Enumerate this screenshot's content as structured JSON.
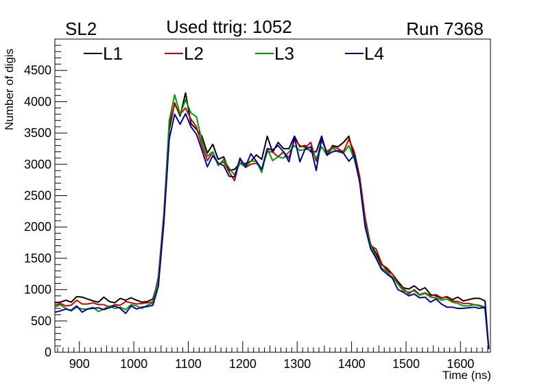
{
  "chart_data": {
    "type": "line",
    "title": "Used ttrig: 1052",
    "left_label": "SL2",
    "right_label": "Run 7368",
    "xlabel": "Time (ns)",
    "ylabel": "Number of digis",
    "xlim": [
      855,
      1655
    ],
    "ylim": [
      0,
      5000
    ],
    "x_ticks": [
      900,
      1000,
      1100,
      1200,
      1300,
      1400,
      1500,
      1600
    ],
    "y_ticks": [
      0,
      500,
      1000,
      1500,
      2000,
      2500,
      3000,
      3500,
      4000,
      4500
    ],
    "legend_position": "top",
    "grid": false,
    "x": [
      855,
      865,
      875,
      885,
      895,
      905,
      915,
      925,
      935,
      945,
      955,
      965,
      975,
      985,
      995,
      1005,
      1015,
      1025,
      1035,
      1045,
      1055,
      1065,
      1075,
      1085,
      1095,
      1105,
      1115,
      1125,
      1135,
      1145,
      1155,
      1165,
      1175,
      1185,
      1195,
      1205,
      1215,
      1225,
      1235,
      1245,
      1255,
      1265,
      1275,
      1285,
      1295,
      1305,
      1315,
      1325,
      1335,
      1345,
      1355,
      1365,
      1375,
      1385,
      1395,
      1405,
      1415,
      1425,
      1435,
      1445,
      1455,
      1465,
      1475,
      1485,
      1495,
      1505,
      1515,
      1525,
      1535,
      1545,
      1555,
      1565,
      1575,
      1585,
      1595,
      1605,
      1615,
      1625,
      1635,
      1645,
      1652
    ],
    "series": [
      {
        "name": "L1",
        "color": "#000000",
        "values": [
          790,
          800,
          830,
          800,
          890,
          880,
          850,
          820,
          800,
          880,
          810,
          790,
          860,
          830,
          870,
          830,
          800,
          810,
          850,
          1150,
          2100,
          3550,
          3980,
          3770,
          4140,
          3650,
          3560,
          3450,
          3180,
          3320,
          3080,
          3120,
          2900,
          2920,
          3020,
          3010,
          3050,
          3150,
          3080,
          3450,
          3190,
          3350,
          3250,
          3250,
          3450,
          3280,
          3300,
          3200,
          3200,
          3450,
          3150,
          3300,
          3280,
          3350,
          3450,
          3100,
          2760,
          2100,
          1720,
          1580,
          1400,
          1340,
          1250,
          1130,
          1030,
          1010,
          1060,
          990,
          1030,
          920,
          900,
          860,
          890,
          840,
          880,
          820,
          840,
          860,
          860,
          820,
          50
        ]
      },
      {
        "name": "L2",
        "color": "#cc0000",
        "values": [
          750,
          780,
          740,
          750,
          830,
          770,
          770,
          790,
          760,
          760,
          720,
          760,
          750,
          810,
          790,
          770,
          780,
          790,
          800,
          1200,
          2200,
          3650,
          3960,
          3800,
          3900,
          3720,
          3600,
          3300,
          3060,
          3200,
          3000,
          3040,
          2880,
          2740,
          3080,
          2950,
          3000,
          3020,
          2920,
          3200,
          3200,
          3120,
          3200,
          3100,
          3400,
          3300,
          3270,
          3350,
          3050,
          3380,
          3200,
          3280,
          3250,
          3200,
          3400,
          3200,
          2800,
          2150,
          1700,
          1650,
          1420,
          1300,
          1250,
          1100,
          1020,
          930,
          1000,
          920,
          950,
          900,
          920,
          870,
          880,
          820,
          810,
          780,
          780,
          760,
          740,
          700,
          50
        ]
      },
      {
        "name": "L3",
        "color": "#009900",
        "values": [
          720,
          760,
          700,
          660,
          720,
          690,
          690,
          720,
          650,
          690,
          740,
          700,
          720,
          680,
          760,
          740,
          700,
          750,
          790,
          1150,
          2100,
          3700,
          4110,
          3800,
          4030,
          3820,
          3760,
          3380,
          3130,
          3200,
          2980,
          3080,
          2940,
          2830,
          3020,
          2960,
          3050,
          3050,
          2870,
          3250,
          3060,
          3120,
          3100,
          3200,
          3300,
          3220,
          3240,
          3230,
          3100,
          3280,
          3140,
          3260,
          3200,
          3180,
          3300,
          3080,
          2720,
          2050,
          1700,
          1530,
          1350,
          1280,
          1200,
          1090,
          980,
          960,
          980,
          910,
          940,
          880,
          870,
          830,
          850,
          800,
          780,
          740,
          740,
          760,
          750,
          720,
          50
        ]
      },
      {
        "name": "L4",
        "color": "#000099",
        "values": [
          640,
          660,
          690,
          670,
          740,
          640,
          690,
          700,
          710,
          680,
          710,
          740,
          700,
          620,
          740,
          690,
          720,
          730,
          750,
          1050,
          2050,
          3400,
          3800,
          3640,
          3810,
          3600,
          3480,
          3230,
          2960,
          3140,
          3020,
          2980,
          2810,
          2800,
          3100,
          2960,
          3170,
          3050,
          2920,
          3250,
          3230,
          3300,
          3200,
          3040,
          3430,
          3040,
          3250,
          3280,
          2900,
          3420,
          3150,
          3200,
          3220,
          3180,
          3050,
          3150,
          2700,
          2000,
          1650,
          1500,
          1320,
          1250,
          1180,
          1000,
          960,
          900,
          930,
          870,
          880,
          800,
          850,
          770,
          720,
          720,
          700,
          700,
          710,
          720,
          700,
          720,
          50
        ]
      }
    ]
  }
}
